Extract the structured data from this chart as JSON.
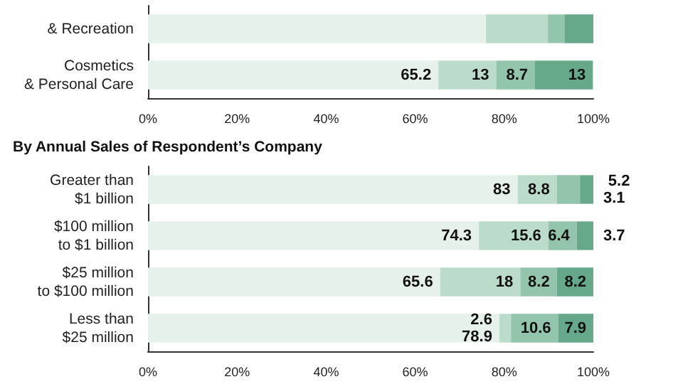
{
  "chart_data": [
    {
      "type": "bar",
      "orientation": "horizontal",
      "stacked": true,
      "categories": [
        "& Recreation",
        "Cosmetics\n& Personal Care"
      ],
      "xlim": [
        0,
        100
      ],
      "xticks": [
        {
          "value": 0,
          "label": "0%"
        },
        {
          "value": 20,
          "label": "20%"
        },
        {
          "value": 40,
          "label": "40%"
        },
        {
          "value": 60,
          "label": "60%"
        },
        {
          "value": 80,
          "label": "80%"
        },
        {
          "value": 100,
          "label": "100%"
        }
      ],
      "grid": false,
      "series": [
        {
          "color": "#e6f1eb",
          "values": [
            75.9,
            65.2
          ],
          "value_labels": [
            null,
            "65.2"
          ]
        },
        {
          "color": "#bcdccb",
          "values": [
            13.9,
            13
          ],
          "value_labels": [
            null,
            "13"
          ]
        },
        {
          "color": "#93c5ad",
          "values": [
            3.7,
            8.7
          ],
          "value_labels": [
            null,
            "8.7"
          ]
        },
        {
          "color": "#65a98a",
          "values": [
            6.5,
            13
          ],
          "value_labels": [
            null,
            "13"
          ]
        }
      ]
    },
    {
      "type": "bar",
      "orientation": "horizontal",
      "stacked": true,
      "title": "By Annual Sales of Respondent’s Company",
      "categories": [
        "Greater than\n$1 billion",
        "$100 million\nto $1 billion",
        "$25 million\nto $100 million",
        "Less than\n$25 million"
      ],
      "xlim": [
        0,
        100
      ],
      "xticks": [
        {
          "value": 0,
          "label": "0%"
        },
        {
          "value": 20,
          "label": "20%"
        },
        {
          "value": 40,
          "label": "40%"
        },
        {
          "value": 60,
          "label": "60%"
        },
        {
          "value": 80,
          "label": "80%"
        },
        {
          "value": 100,
          "label": "100%"
        }
      ],
      "grid": false,
      "data_labels": true,
      "series": [
        {
          "color": "#e6f1eb",
          "values": [
            83,
            74.3,
            65.6,
            78.9
          ]
        },
        {
          "color": "#bcdccb",
          "values": [
            8.8,
            15.6,
            18,
            2.6
          ]
        },
        {
          "color": "#93c5ad",
          "values": [
            5.2,
            6.4,
            8.2,
            10.6
          ]
        },
        {
          "color": "#65a98a",
          "values": [
            3.1,
            3.7,
            8.2,
            7.9
          ]
        }
      ]
    }
  ]
}
